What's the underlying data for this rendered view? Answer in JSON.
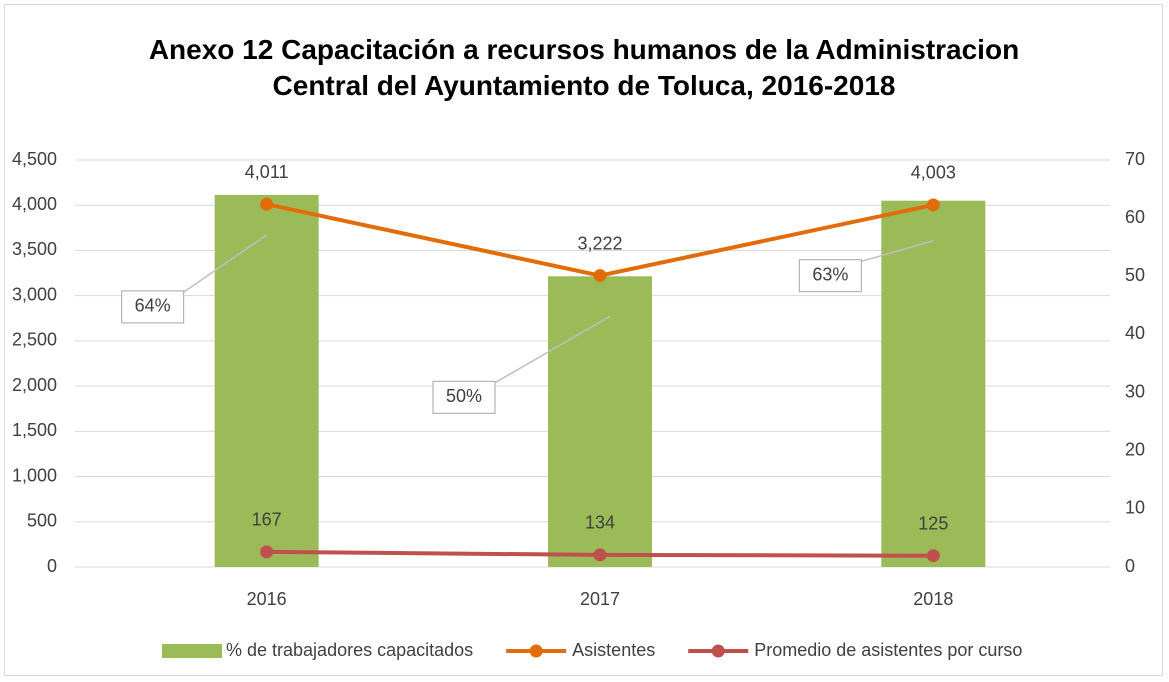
{
  "chart_data": {
    "type": "bar-line",
    "title": "Anexo 12 Capacitación a recursos humanos de la Administracion Central del Ayuntamiento de Toluca, 2016-2018",
    "categories": [
      "2016",
      "2017",
      "2018"
    ],
    "series": [
      {
        "name": "% de trabajadores capacitados",
        "type": "bar",
        "axis": "y2",
        "color": "#9bbb59",
        "values": [
          64,
          50,
          63
        ],
        "value_labels": [
          "64%",
          "50%",
          "63%"
        ]
      },
      {
        "name": "Asistentes",
        "type": "line",
        "color": "#e36c0a",
        "values": [
          4011,
          3222,
          4003
        ],
        "value_labels": [
          "4,011",
          "3,222",
          "4,003"
        ]
      },
      {
        "name": "Promedio de asistentes por curso",
        "type": "line",
        "color": "#c0504d",
        "values": [
          167,
          134,
          125
        ]
      }
    ],
    "ylim": [
      0,
      4500
    ],
    "yticks": [
      0,
      500,
      {
        "value": 1000,
        "label": "1,000"
      },
      {
        "value": 1500,
        "label": "1,500"
      },
      {
        "value": 2000,
        "label": "2,000"
      },
      {
        "value": 2500,
        "label": "2,500"
      },
      {
        "value": 3000,
        "label": "3,000"
      },
      {
        "value": 3500,
        "label": "3,500"
      },
      {
        "value": 4000,
        "label": "4,000"
      },
      {
        "value": 4500,
        "label": "4,500"
      }
    ],
    "y2lim": [
      0,
      70
    ],
    "y2ticks": [
      0,
      10,
      20,
      30,
      40,
      50,
      60,
      70
    ],
    "grid": true,
    "legend": "bottom"
  }
}
